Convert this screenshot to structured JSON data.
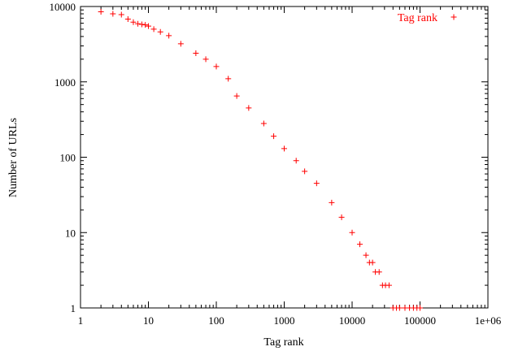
{
  "chart_data": {
    "type": "scatter",
    "title": "",
    "xlabel": "Tag rank",
    "ylabel": "Number of URLs",
    "x_scale": "log",
    "y_scale": "log",
    "xlim": [
      1,
      1000000
    ],
    "ylim": [
      1,
      10000
    ],
    "x_ticks": [
      "1",
      "10",
      "100",
      "1000",
      "10000",
      "100000",
      "1e+06"
    ],
    "y_ticks": [
      "1",
      "10",
      "100",
      "1000",
      "10000"
    ],
    "grid": false,
    "legend_position": "top-right",
    "marker": "plus",
    "series": [
      {
        "name": "Tag rank",
        "color": "#ff0000",
        "x": [
          2,
          3,
          4,
          5,
          6,
          7,
          8,
          9,
          10,
          12,
          15,
          20,
          30,
          50,
          70,
          100,
          150,
          200,
          300,
          500,
          700,
          1000,
          1500,
          2000,
          3000,
          5000,
          7000,
          10000,
          13000,
          16000,
          18000,
          20000,
          22000,
          25000,
          28000,
          31000,
          35000,
          40000,
          45000,
          50000,
          60000,
          70000,
          80000,
          90000,
          100000
        ],
        "y": [
          8500,
          8000,
          7800,
          6800,
          6200,
          5900,
          5800,
          5700,
          5500,
          5000,
          4600,
          4100,
          3200,
          2400,
          2000,
          1600,
          1100,
          650,
          450,
          280,
          190,
          130,
          90,
          65,
          45,
          25,
          16,
          10,
          7,
          5,
          4,
          4,
          3,
          3,
          2,
          2,
          2,
          1,
          1,
          1,
          1,
          1,
          1,
          1,
          1
        ]
      }
    ]
  }
}
